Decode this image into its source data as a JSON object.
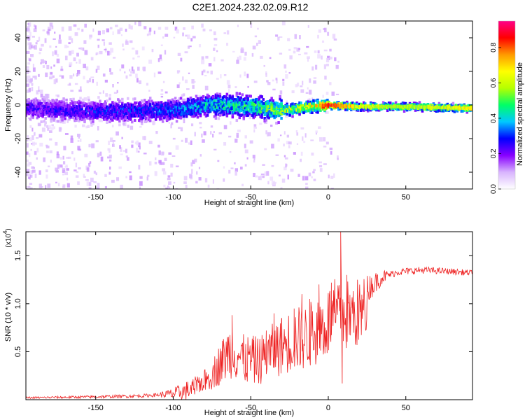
{
  "page": {
    "title": "C2E1.2024.232.02.09.R12"
  },
  "chart_data": [
    {
      "type": "heatmap",
      "name": "spectrogram",
      "xlabel": "Height of straight line (km)",
      "ylabel": "Frequency (Hz)",
      "xlim": [
        -195,
        93
      ],
      "ylim": [
        -50,
        50
      ],
      "xticks": [
        "-150",
        "-100",
        "-50",
        "0",
        "50"
      ],
      "xtick_values": [
        -150,
        -100,
        -50,
        0,
        50
      ],
      "yticks": [
        "-40",
        "-20",
        "0",
        "20",
        "40"
      ],
      "ytick_values": [
        -40,
        -20,
        0,
        20,
        40
      ],
      "colorbar": {
        "label": "Normalized spectral amplitude",
        "range": [
          0,
          0.95
        ],
        "ticks": [
          "0.0",
          "0.2",
          "0.4",
          "0.6",
          "0.8"
        ],
        "tick_values": [
          0,
          0.2,
          0.4,
          0.6,
          0.8
        ],
        "colors": [
          "#ffffff",
          "#d8b4fe",
          "#8800ff",
          "#0000ff",
          "#00c8ff",
          "#00ff66",
          "#b5ff00",
          "#ffff00",
          "#ff9900",
          "#ff0000",
          "#ff0088"
        ]
      },
      "band_center_hz": [
        {
          "x": -195,
          "y": -2
        },
        {
          "x": -150,
          "y": -4
        },
        {
          "x": -100,
          "y": -3
        },
        {
          "x": -75,
          "y": 0
        },
        {
          "x": -50,
          "y": -1
        },
        {
          "x": -30,
          "y": -3
        },
        {
          "x": -10,
          "y": -1
        },
        {
          "x": 0,
          "y": 0
        },
        {
          "x": 20,
          "y": -1
        },
        {
          "x": 50,
          "y": -1
        },
        {
          "x": 93,
          "y": -2
        }
      ],
      "band_peak_amplitude": [
        {
          "x": -195,
          "a": 0.25
        },
        {
          "x": -150,
          "a": 0.3
        },
        {
          "x": -100,
          "a": 0.35
        },
        {
          "x": -75,
          "a": 0.45
        },
        {
          "x": -50,
          "a": 0.5
        },
        {
          "x": -30,
          "a": 0.6
        },
        {
          "x": -10,
          "a": 0.7
        },
        {
          "x": 0,
          "a": 0.95
        },
        {
          "x": 20,
          "a": 0.7
        },
        {
          "x": 50,
          "a": 0.65
        },
        {
          "x": 93,
          "a": 0.75
        }
      ]
    },
    {
      "type": "line",
      "name": "snr",
      "xlabel": "Height of straight line (km)",
      "ylabel": "SNR (10 * v/v)",
      "scale_label": "(x10",
      "scale_exponent": "4",
      "xlim": [
        -195,
        93
      ],
      "ylim": [
        0,
        1.75
      ],
      "xticks": [
        "-150",
        "-100",
        "-50",
        "0",
        "50"
      ],
      "xtick_values": [
        -150,
        -100,
        -50,
        0,
        50
      ],
      "yticks": [
        "0.5",
        "1.0",
        "1.5"
      ],
      "ytick_values": [
        0.5,
        1.0,
        1.5
      ],
      "color": "#ee2222",
      "envelope": [
        {
          "x": -195,
          "y": 0.02
        },
        {
          "x": -150,
          "y": 0.03
        },
        {
          "x": -120,
          "y": 0.04
        },
        {
          "x": -100,
          "y": 0.06
        },
        {
          "x": -85,
          "y": 0.12
        },
        {
          "x": -75,
          "y": 0.2
        },
        {
          "x": -70,
          "y": 0.3
        },
        {
          "x": -62,
          "y": 0.45
        },
        {
          "x": -55,
          "y": 0.3
        },
        {
          "x": -45,
          "y": 0.3
        },
        {
          "x": -35,
          "y": 0.45
        },
        {
          "x": -25,
          "y": 0.55
        },
        {
          "x": -15,
          "y": 0.6
        },
        {
          "x": -5,
          "y": 0.75
        },
        {
          "x": 0,
          "y": 0.85
        },
        {
          "x": 5,
          "y": 0.95
        },
        {
          "x": 15,
          "y": 1.0
        },
        {
          "x": 25,
          "y": 1.15
        },
        {
          "x": 35,
          "y": 1.28
        },
        {
          "x": 45,
          "y": 1.33
        },
        {
          "x": 60,
          "y": 1.35
        },
        {
          "x": 75,
          "y": 1.34
        },
        {
          "x": 93,
          "y": 1.32
        }
      ],
      "noise_amplitude": [
        {
          "x": -195,
          "n": 0.01
        },
        {
          "x": -110,
          "n": 0.02
        },
        {
          "x": -80,
          "n": 0.15
        },
        {
          "x": -62,
          "n": 0.4
        },
        {
          "x": -40,
          "n": 0.35
        },
        {
          "x": -20,
          "n": 0.4
        },
        {
          "x": 0,
          "n": 0.35
        },
        {
          "x": 10,
          "n": 0.3
        },
        {
          "x": 25,
          "n": 0.15
        },
        {
          "x": 40,
          "n": 0.04
        },
        {
          "x": 93,
          "n": 0.03
        }
      ],
      "spikes": [
        {
          "x": -62,
          "y": 0.88
        },
        {
          "x": -48,
          "y": 0.62
        },
        {
          "x": -40,
          "y": 0.72
        },
        {
          "x": -35,
          "y": 0.9
        },
        {
          "x": -30,
          "y": 0.85
        },
        {
          "x": -22,
          "y": 0.95
        },
        {
          "x": -17,
          "y": 1.1
        },
        {
          "x": -12,
          "y": 1.05
        },
        {
          "x": -6,
          "y": 1.2
        },
        {
          "x": 2,
          "y": 1.22
        },
        {
          "x": 8,
          "y": 1.75
        },
        {
          "x": 9,
          "y": 0.17
        },
        {
          "x": 12,
          "y": 1.3
        }
      ]
    }
  ]
}
